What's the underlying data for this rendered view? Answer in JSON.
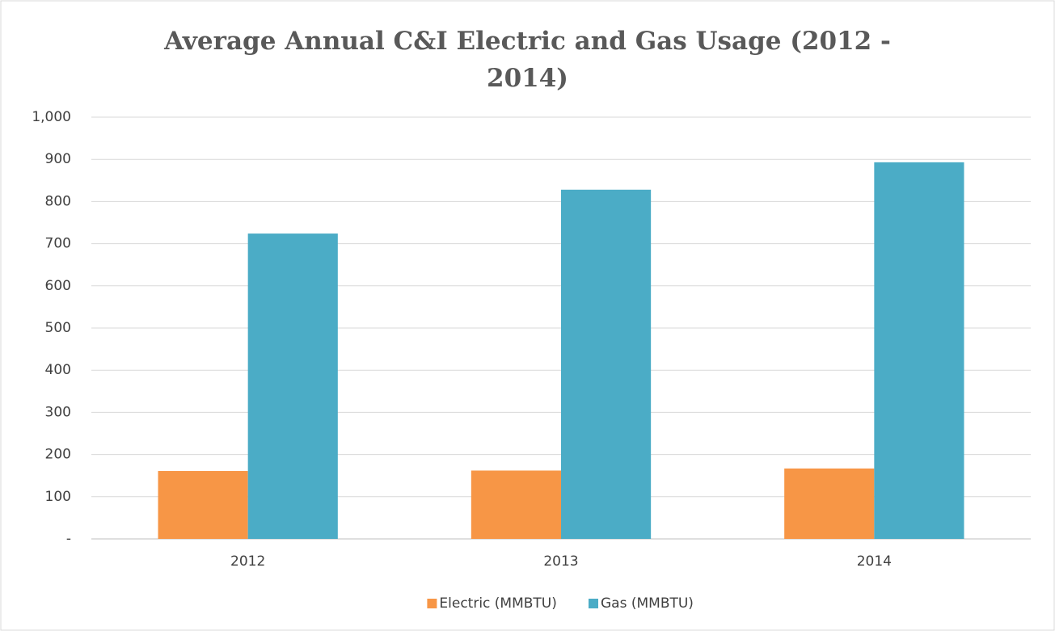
{
  "chart_data": {
    "type": "bar",
    "title": "Average Annual C&I Electric and Gas Usage (2012 - 2014)",
    "categories": [
      "2012",
      "2013",
      "2014"
    ],
    "series": [
      {
        "name": "Electric (MMBTU)",
        "color": "#f79646",
        "values": [
          161,
          162,
          167
        ]
      },
      {
        "name": "Gas (MMBTU)",
        "color": "#4bacc6",
        "values": [
          724,
          828,
          893
        ]
      }
    ],
    "ylim": [
      0,
      1000
    ],
    "yticks": [
      {
        "value": 0,
        "label": "-"
      },
      100,
      200,
      300,
      400,
      500,
      600,
      700,
      800,
      900,
      {
        "value": 1000,
        "label": "1,000"
      }
    ],
    "grid": true,
    "legend": "bottom"
  }
}
